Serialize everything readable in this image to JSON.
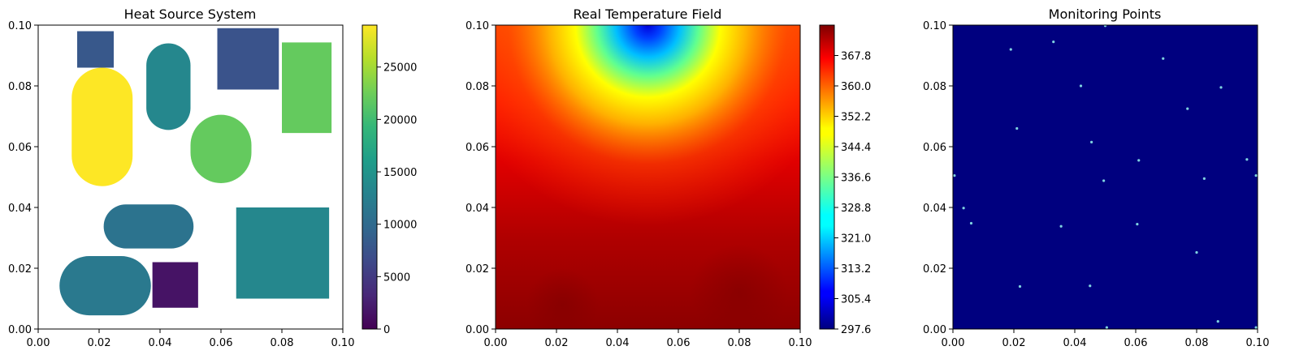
{
  "chart_data": [
    {
      "type": "heatmap",
      "title": "Heat Source System",
      "xlim": [
        0,
        0.1
      ],
      "ylim": [
        0,
        0.1
      ],
      "x_ticks": [
        "0.00",
        "0.02",
        "0.04",
        "0.06",
        "0.08",
        "0.10"
      ],
      "y_ticks": [
        "0.00",
        "0.02",
        "0.04",
        "0.06",
        "0.08",
        "0.10"
      ],
      "colormap": "viridis",
      "colorbar_ticks": [
        "0",
        "5000",
        "10000",
        "15000",
        "20000",
        "25000"
      ],
      "colorbar_range": [
        0,
        29000
      ],
      "background": "#ffffff",
      "components": [
        {
          "shape": "rect",
          "x0": 0.0128,
          "x1": 0.0248,
          "y0": 0.086,
          "y1": 0.098,
          "power": 8000
        },
        {
          "shape": "capsule-v",
          "x0": 0.011,
          "x1": 0.031,
          "y0": 0.047,
          "y1": 0.086,
          "power": 29000
        },
        {
          "shape": "capsule-v",
          "x0": 0.0355,
          "x1": 0.05,
          "y0": 0.0655,
          "y1": 0.094,
          "power": 13500
        },
        {
          "shape": "rect",
          "x0": 0.0588,
          "x1": 0.079,
          "y0": 0.0788,
          "y1": 0.099,
          "power": 7500
        },
        {
          "shape": "rect",
          "x0": 0.08,
          "x1": 0.0963,
          "y0": 0.0645,
          "y1": 0.0943,
          "power": 22000
        },
        {
          "shape": "capsule-v",
          "x0": 0.05,
          "x1": 0.07,
          "y0": 0.048,
          "y1": 0.0705,
          "power": 22000
        },
        {
          "shape": "capsule-h",
          "x0": 0.0215,
          "x1": 0.051,
          "y0": 0.0265,
          "y1": 0.041,
          "power": 11000
        },
        {
          "shape": "rect",
          "x0": 0.065,
          "x1": 0.0955,
          "y0": 0.01,
          "y1": 0.04,
          "power": 13500
        },
        {
          "shape": "capsule-h",
          "x0": 0.007,
          "x1": 0.037,
          "y0": 0.0045,
          "y1": 0.024,
          "power": 11800
        },
        {
          "shape": "rect",
          "x0": 0.0375,
          "x1": 0.0525,
          "y0": 0.007,
          "y1": 0.022,
          "power": 1500
        }
      ]
    },
    {
      "type": "heatmap",
      "title": "Real Temperature Field",
      "xlim": [
        0,
        0.1
      ],
      "ylim": [
        0,
        0.1
      ],
      "x_ticks": [
        "0.00",
        "0.02",
        "0.04",
        "0.06",
        "0.08",
        "0.10"
      ],
      "y_ticks": [
        "0.00",
        "0.02",
        "0.04",
        "0.06",
        "0.08",
        "0.10"
      ],
      "colormap": "jet",
      "colorbar_ticks": [
        "297.6",
        "305.4",
        "313.2",
        "321.0",
        "328.8",
        "336.6",
        "344.4",
        "352.2",
        "360.0",
        "367.8"
      ],
      "colorbar_range": [
        297.6,
        375.6
      ],
      "heat_sink_center": [
        0.05,
        0.1
      ]
    },
    {
      "type": "scatter",
      "title": "Monitoring Points",
      "xlim": [
        0,
        0.1
      ],
      "ylim": [
        0,
        0.1
      ],
      "x_ticks": [
        "0.00",
        "0.02",
        "0.04",
        "0.06",
        "0.08",
        "0.10"
      ],
      "y_ticks": [
        "0.00",
        "0.02",
        "0.04",
        "0.06",
        "0.08",
        "0.10"
      ],
      "background": "#00007f",
      "marker_color": "#7fd3e0",
      "points": [
        [
          0.05,
          0.0998
        ],
        [
          0.019,
          0.092
        ],
        [
          0.033,
          0.0945
        ],
        [
          0.069,
          0.089
        ],
        [
          0.042,
          0.08
        ],
        [
          0.088,
          0.0795
        ],
        [
          0.077,
          0.0725
        ],
        [
          0.021,
          0.066
        ],
        [
          0.0455,
          0.0615
        ],
        [
          0.061,
          0.0555
        ],
        [
          0.0965,
          0.0558
        ],
        [
          0.0005,
          0.0505
        ],
        [
          0.0495,
          0.0488
        ],
        [
          0.0825,
          0.0495
        ],
        [
          0.0995,
          0.0505
        ],
        [
          0.0035,
          0.0398
        ],
        [
          0.006,
          0.0348
        ],
        [
          0.0355,
          0.0338
        ],
        [
          0.0605,
          0.0345
        ],
        [
          0.08,
          0.0252
        ],
        [
          0.022,
          0.014
        ],
        [
          0.045,
          0.0142
        ],
        [
          0.087,
          0.0025
        ],
        [
          0.0505,
          0.0005
        ],
        [
          0.0995,
          0.0005
        ]
      ]
    }
  ]
}
